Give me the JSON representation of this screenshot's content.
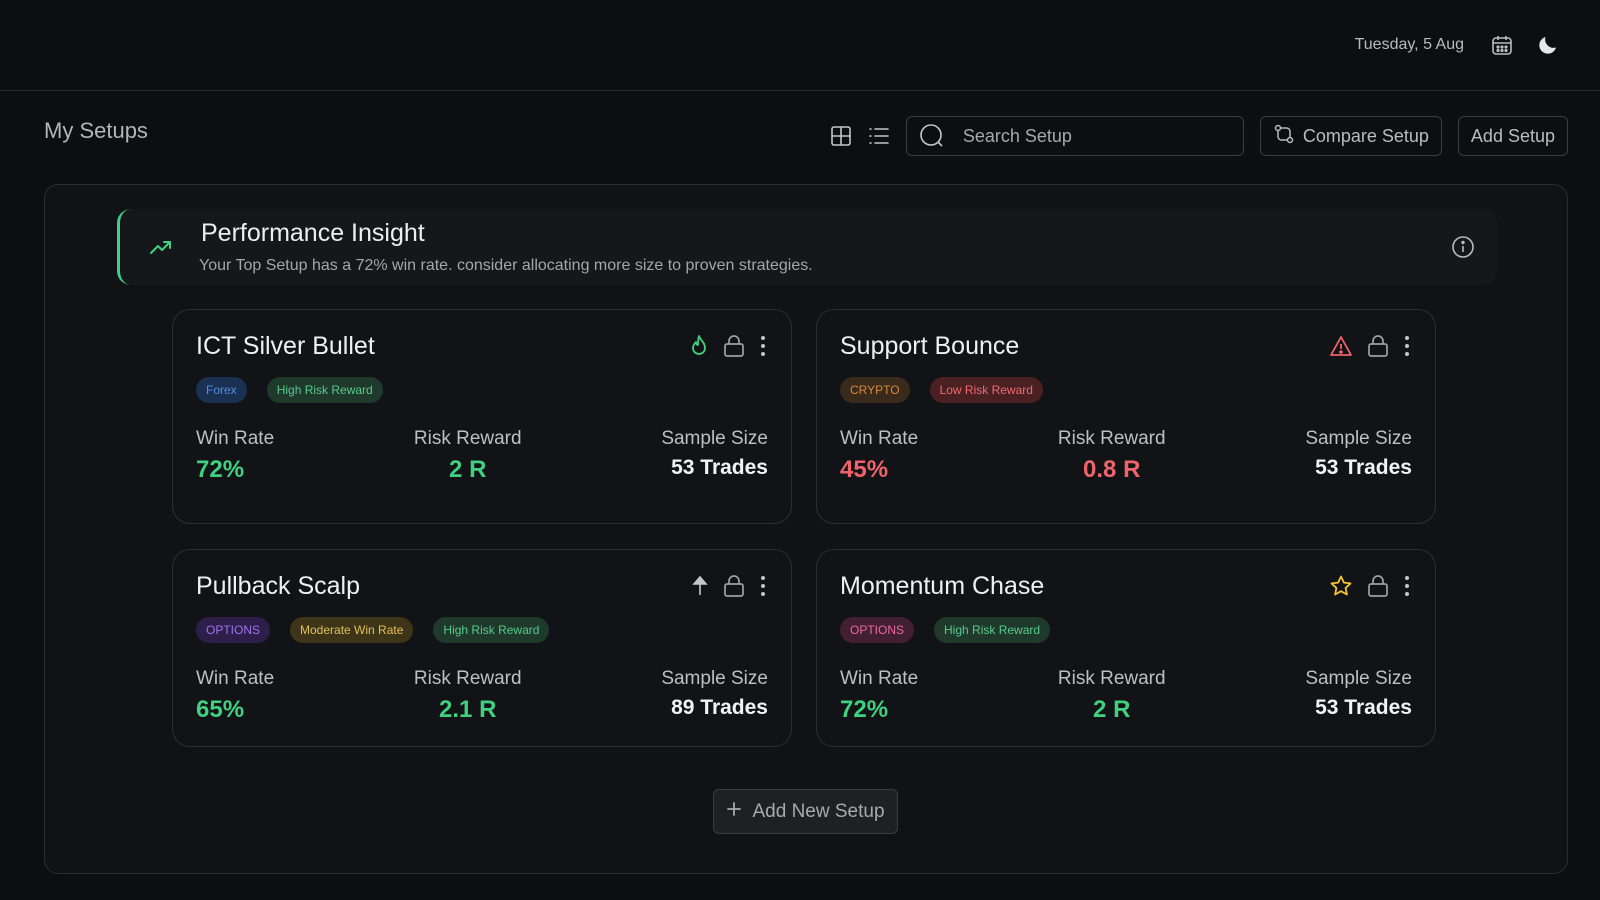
{
  "header": {
    "date": "Tuesday, 5 Aug",
    "icons": [
      "calendar-icon",
      "moon-icon"
    ]
  },
  "page": {
    "title": "My Setups",
    "search_placeholder": "Search Setup",
    "compare_label": "Compare Setup",
    "add_label": "Add Setup"
  },
  "insight": {
    "title": "Performance Insight",
    "text": "Your Top Setup has a 72% win rate. consider allocating more size to proven strategies."
  },
  "labels": {
    "win_rate": "Win Rate",
    "risk_reward": "Risk Reward",
    "sample_size": "Sample Size"
  },
  "setups": [
    {
      "name": "ICT Silver Bullet",
      "status_icon": "flame-icon",
      "tags": [
        "Forex",
        "High Risk Reward"
      ],
      "win_rate": "72%",
      "risk_reward": "2 R",
      "sample_size": "53 Trades"
    },
    {
      "name": "Support Bounce",
      "status_icon": "warning-icon",
      "tags": [
        "CRYPTO",
        "Low Risk Reward"
      ],
      "win_rate": "45%",
      "risk_reward": "0.8 R",
      "sample_size": "53 Trades"
    },
    {
      "name": "Pullback Scalp",
      "status_icon": "arrow-up-icon",
      "tags": [
        "OPTIONS",
        "Moderate Win Rate",
        "High Risk Reward"
      ],
      "win_rate": "65%",
      "risk_reward": "2.1 R",
      "sample_size": "89 Trades"
    },
    {
      "name": "Momentum Chase",
      "status_icon": "star-icon",
      "tags": [
        "OPTIONS",
        "High Risk Reward"
      ],
      "win_rate": "72%",
      "risk_reward": "2 R",
      "sample_size": "53 Trades"
    }
  ],
  "add_new_label": "Add New Setup",
  "colors": {
    "positive": "#3fd180",
    "negative": "#f0636b",
    "tag_forex_bg": "#1b3153",
    "tag_forex_fg": "#4f8ee6",
    "tag_green_bg": "#1f3a2c",
    "tag_green_fg": "#58c98b",
    "tag_crypto_bg": "#3a2a1b",
    "tag_crypto_fg": "#d88a3c",
    "tag_red_bg": "#4a2023",
    "tag_red_fg": "#ef6b71",
    "tag_purple_bg": "#2d1f4a",
    "tag_purple_fg": "#a073ee",
    "tag_yellow_bg": "#3e3418",
    "tag_yellow_fg": "#e1c05a",
    "tag_pink_bg": "#421f31",
    "tag_pink_fg": "#ec6aa4"
  }
}
